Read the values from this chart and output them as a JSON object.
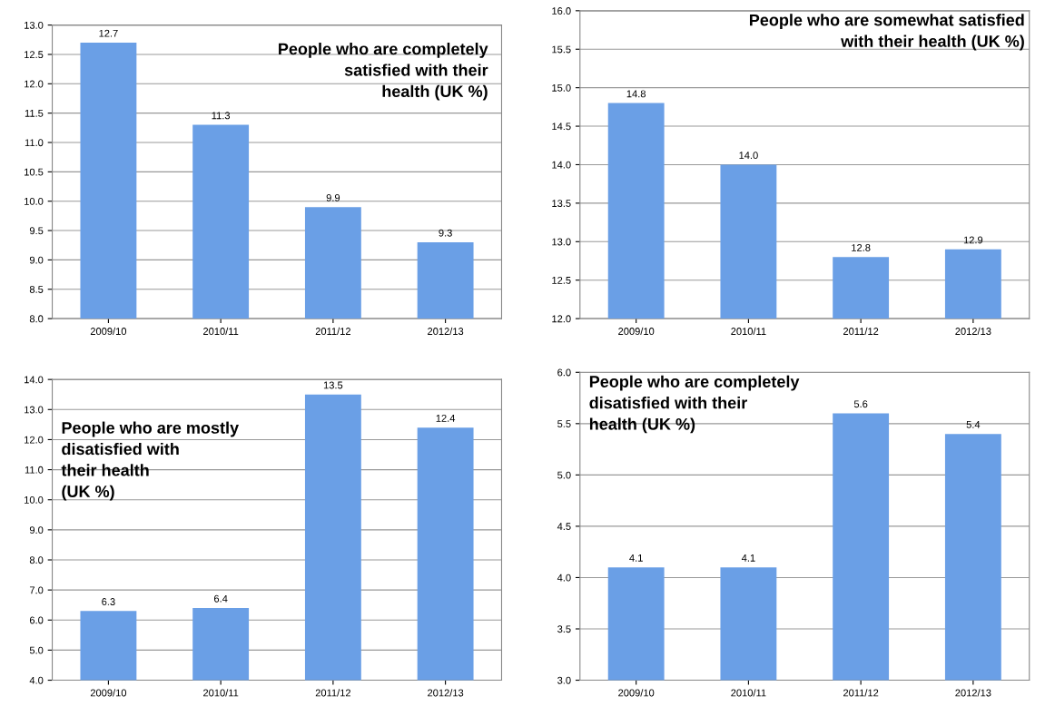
{
  "chart_data": [
    {
      "type": "bar",
      "title": "People who are completely\nsatisfied with their\nhealth (UK %)",
      "categories": [
        "2009/10",
        "2010/11",
        "2011/12",
        "2012/13"
      ],
      "values": [
        12.7,
        11.3,
        9.9,
        9.3
      ],
      "color": "#6a9fe6",
      "ylim": [
        8,
        13
      ],
      "yticks": [
        {
          "value": 8,
          "label": "8.0"
        },
        8.5,
        {
          "value": 9,
          "label": "9.0"
        },
        9.5,
        {
          "value": 10,
          "label": "10.0"
        },
        10.5,
        {
          "value": 11,
          "label": "11.0"
        },
        11.5,
        {
          "value": 12,
          "label": "12.0"
        },
        12.5,
        {
          "value": 13,
          "label": "13.0"
        }
      ],
      "grid": "y",
      "data_labels": true
    },
    {
      "type": "bar",
      "title": "People who are somewhat satisfied\nwith their health (UK %)",
      "categories": [
        "2009/10",
        "2010/11",
        "2011/12",
        "2012/13"
      ],
      "values": [
        14.8,
        14.0,
        12.8,
        12.9
      ],
      "value_labels": [
        "14.8",
        "14.0",
        "12.8",
        "12.9"
      ],
      "color": "#6a9fe6",
      "ylim": [
        12,
        16
      ],
      "yticks": [
        {
          "value": 12,
          "label": "12.0"
        },
        12.5,
        {
          "value": 13,
          "label": "13.0"
        },
        13.5,
        {
          "value": 14,
          "label": "14.0"
        },
        14.5,
        {
          "value": 15,
          "label": "15.0"
        },
        15.5,
        {
          "value": 16,
          "label": "16.0"
        }
      ],
      "grid": "y"
    },
    {
      "type": "bar",
      "title": "People who are mostly\ndisatisfied with\ntheir health\n(UK %)",
      "categories": [
        "2009/10",
        "2010/11",
        "2011/12",
        "2012/13"
      ],
      "values": [
        6.3,
        6.4,
        13.5,
        12.4
      ],
      "color": "#6a9fe6",
      "ylim": [
        4,
        14
      ],
      "yticks": [
        {
          "value": 4,
          "label": "4.0"
        },
        {
          "value": 5,
          "label": "5.0"
        },
        {
          "value": 6,
          "label": "6.0"
        },
        {
          "value": 7,
          "label": "7.0"
        },
        {
          "value": 8,
          "label": "8.0"
        },
        {
          "value": 9,
          "label": "9.0"
        },
        {
          "value": 10,
          "label": "10.0"
        },
        {
          "value": 11,
          "label": "11.0"
        },
        {
          "value": 12,
          "label": "12.0"
        },
        {
          "value": 13,
          "label": "13.0"
        },
        {
          "value": 14,
          "label": "14.0"
        }
      ],
      "grid": "y",
      "data_labels": true
    },
    {
      "type": "bar",
      "title": "People who are completely\ndisatisfied with their\nhealth (UK %)",
      "categories": [
        "2009/10",
        "2010/11",
        "2011/12",
        "2012/13"
      ],
      "values": [
        4.1,
        4.1,
        5.6,
        5.4
      ],
      "color": "#6a9fe6",
      "ylim": [
        3,
        6
      ],
      "yticks": [
        {
          "value": 3,
          "label": "3.0"
        },
        3.5,
        {
          "value": 4,
          "label": "4.0"
        },
        4.5,
        {
          "value": 5,
          "label": "5.0"
        },
        5.5,
        {
          "value": 6,
          "label": "6.0"
        }
      ],
      "grid": "y",
      "data_labels": true
    }
  ]
}
